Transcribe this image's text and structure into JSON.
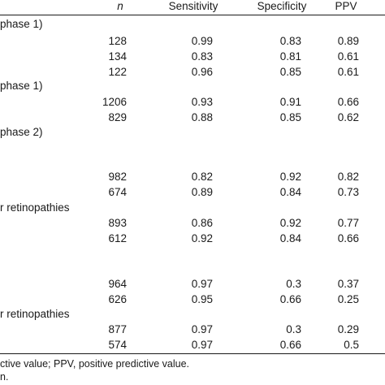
{
  "header": {
    "n": "n",
    "sensitivity": "Sensitivity",
    "specificity": "Specificity",
    "ppv": "PPV"
  },
  "sections": {
    "s1": "phase 1)",
    "s2": "phase 1)",
    "s3": "phase 2)",
    "s4": "r retinopathies",
    "s5": "r retinopathies"
  },
  "rows": [
    {
      "n": "128",
      "sens": "0.99",
      "spec": "0.83",
      "ppv": "0.89"
    },
    {
      "n": "134",
      "sens": "0.83",
      "spec": "0.81",
      "ppv": "0.61"
    },
    {
      "n": "122",
      "sens": "0.96",
      "spec": "0.85",
      "ppv": "0.61"
    },
    {
      "n": "1206",
      "sens": "0.93",
      "spec": "0.91",
      "ppv": "0.66"
    },
    {
      "n": "829",
      "sens": "0.88",
      "spec": "0.85",
      "ppv": "0.62"
    },
    {
      "n": "982",
      "sens": "0.82",
      "spec": "0.92",
      "ppv": "0.82"
    },
    {
      "n": "674",
      "sens": "0.89",
      "spec": "0.84",
      "ppv": "0.73"
    },
    {
      "n": "893",
      "sens": "0.86",
      "spec": "0.92",
      "ppv": "0.77"
    },
    {
      "n": "612",
      "sens": "0.92",
      "spec": "0.84",
      "ppv": "0.66"
    },
    {
      "n": "964",
      "sens": "0.97",
      "spec": "0.3",
      "ppv": "0.37"
    },
    {
      "n": "626",
      "sens": "0.95",
      "spec": "0.66",
      "ppv": "0.25"
    },
    {
      "n": "877",
      "sens": "0.97",
      "spec": "0.3",
      "ppv": "0.29"
    },
    {
      "n": "574",
      "sens": "0.97",
      "spec": "0.66",
      "ppv": "0.5"
    }
  ],
  "footnotes": {
    "line1": "ctive value; PPV, positive predictive value.",
    "line2": "n."
  }
}
